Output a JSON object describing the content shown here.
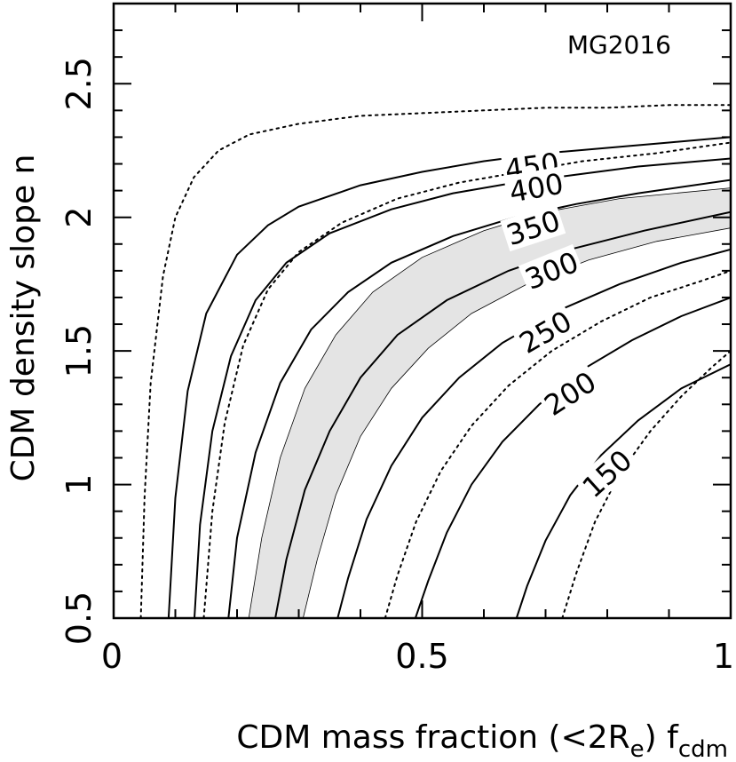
{
  "chart_data": {
    "type": "line",
    "title": "",
    "annotation": "MG2016",
    "xlabel": {
      "text": "CDM mass fraction (<2R",
      "sub_e": "e",
      "close": ")",
      "f": "f",
      "sub_cdm": "cdm"
    },
    "ylabel": "CDM density slope n",
    "xlim": [
      0,
      1
    ],
    "ylim": [
      0.5,
      2.8
    ],
    "x_ticks": [
      0,
      0.5,
      1
    ],
    "x_tick_labels": [
      "0",
      "0.5",
      "1"
    ],
    "y_ticks": [
      0.5,
      1,
      1.5,
      2,
      2.5
    ],
    "y_tick_labels": [
      "0.5",
      "1",
      "1.5",
      "2",
      "2.5"
    ],
    "x_minor_step": 0.1,
    "y_minor_step": 0.1,
    "grid": false,
    "contour_labels": [
      "450",
      "400",
      "350",
      "300",
      "250",
      "200",
      "150"
    ],
    "contour_levels": [
      {
        "level": "450",
        "x": [
          0.089,
          0.1,
          0.12,
          0.15,
          0.2,
          0.25,
          0.3,
          0.4,
          0.5,
          0.6,
          0.7,
          0.8,
          0.9,
          1.0
        ],
        "n": [
          0.5,
          0.95,
          1.35,
          1.64,
          1.86,
          1.97,
          2.04,
          2.12,
          2.17,
          2.21,
          2.24,
          2.26,
          2.28,
          2.3
        ]
      },
      {
        "level": "400",
        "x": [
          0.131,
          0.14,
          0.16,
          0.19,
          0.23,
          0.28,
          0.35,
          0.45,
          0.55,
          0.65,
          0.75,
          0.85,
          1.0
        ],
        "n": [
          0.5,
          0.85,
          1.2,
          1.48,
          1.69,
          1.83,
          1.94,
          2.03,
          2.09,
          2.13,
          2.16,
          2.19,
          2.22
        ]
      },
      {
        "level": "350",
        "x": [
          0.186,
          0.2,
          0.23,
          0.27,
          0.32,
          0.38,
          0.45,
          0.55,
          0.65,
          0.75,
          0.85,
          1.0
        ],
        "n": [
          0.5,
          0.8,
          1.12,
          1.38,
          1.58,
          1.72,
          1.83,
          1.93,
          2.0,
          2.05,
          2.09,
          2.14
        ]
      },
      {
        "level": "300",
        "x": [
          0.262,
          0.28,
          0.31,
          0.35,
          0.4,
          0.46,
          0.54,
          0.64,
          0.74,
          0.86,
          1.0
        ],
        "n": [
          0.5,
          0.72,
          0.98,
          1.2,
          1.4,
          1.56,
          1.69,
          1.8,
          1.88,
          1.95,
          2.02
        ]
      },
      {
        "level": "250",
        "x": [
          0.363,
          0.38,
          0.41,
          0.45,
          0.5,
          0.56,
          0.63,
          0.72,
          0.82,
          0.92,
          1.0
        ],
        "n": [
          0.5,
          0.65,
          0.87,
          1.07,
          1.25,
          1.4,
          1.53,
          1.65,
          1.75,
          1.83,
          1.88
        ]
      },
      {
        "level": "200",
        "x": [
          0.489,
          0.51,
          0.54,
          0.58,
          0.63,
          0.69,
          0.76,
          0.84,
          0.92,
          1.0
        ],
        "n": [
          0.5,
          0.64,
          0.82,
          1.0,
          1.16,
          1.3,
          1.43,
          1.54,
          1.63,
          1.7
        ]
      },
      {
        "level": "150",
        "x": [
          0.653,
          0.67,
          0.7,
          0.74,
          0.79,
          0.85,
          0.92,
          1.0
        ],
        "n": [
          0.5,
          0.62,
          0.79,
          0.96,
          1.11,
          1.24,
          1.36,
          1.45
        ]
      }
    ],
    "dotted_curves": [
      {
        "x": [
          0.044,
          0.05,
          0.06,
          0.08,
          0.1,
          0.13,
          0.17,
          0.22,
          0.3,
          0.4,
          0.5,
          0.6,
          0.7,
          0.8,
          0.9,
          1.0
        ],
        "n": [
          0.5,
          0.95,
          1.38,
          1.78,
          2.0,
          2.15,
          2.25,
          2.31,
          2.35,
          2.38,
          2.39,
          2.4,
          2.41,
          2.41,
          2.42,
          2.42
        ]
      },
      {
        "x": [
          0.146,
          0.16,
          0.18,
          0.21,
          0.25,
          0.3,
          0.37,
          0.46,
          0.56,
          0.66,
          0.76,
          0.88,
          1.0
        ],
        "n": [
          0.5,
          0.9,
          1.23,
          1.52,
          1.73,
          1.87,
          1.98,
          2.07,
          2.13,
          2.17,
          2.21,
          2.24,
          2.28
        ]
      },
      {
        "x": [
          0.44,
          0.46,
          0.49,
          0.53,
          0.58,
          0.64,
          0.71,
          0.79,
          0.87,
          0.95,
          1.0
        ],
        "n": [
          0.5,
          0.66,
          0.86,
          1.05,
          1.22,
          1.37,
          1.5,
          1.61,
          1.7,
          1.76,
          1.8
        ]
      },
      {
        "x": [
          0.727,
          0.75,
          0.78,
          0.82,
          0.87,
          0.92,
          0.97,
          1.0
        ],
        "n": [
          0.5,
          0.67,
          0.86,
          1.04,
          1.2,
          1.33,
          1.44,
          1.5
        ]
      }
    ],
    "shaded_band": {
      "color": "#e4e4e4",
      "lower": {
        "x": [
          0.219,
          0.24,
          0.27,
          0.31,
          0.36,
          0.42,
          0.5,
          0.6,
          0.7,
          0.82,
          1.0
        ],
        "n": [
          0.5,
          0.8,
          1.1,
          1.36,
          1.56,
          1.72,
          1.85,
          1.95,
          2.02,
          2.07,
          2.11
        ]
      },
      "upper": {
        "x": [
          0.307,
          0.33,
          0.36,
          0.4,
          0.45,
          0.51,
          0.58,
          0.67,
          0.77,
          0.88,
          1.0
        ],
        "n": [
          0.5,
          0.72,
          0.96,
          1.18,
          1.36,
          1.51,
          1.64,
          1.75,
          1.84,
          1.91,
          1.96
        ]
      }
    },
    "label_positions": [
      {
        "text": "450",
        "x": 0.678,
        "n": 2.19,
        "angle": -8
      },
      {
        "text": "400",
        "x": 0.685,
        "n": 2.11,
        "angle": -10
      },
      {
        "text": "350",
        "x": 0.68,
        "n": 1.96,
        "angle": -18
      },
      {
        "text": "300",
        "x": 0.71,
        "n": 1.8,
        "angle": -22
      },
      {
        "text": "250",
        "x": 0.7,
        "n": 1.57,
        "angle": -30
      },
      {
        "text": "200",
        "x": 0.74,
        "n": 1.34,
        "angle": -33
      },
      {
        "text": "150",
        "x": 0.8,
        "n": 1.04,
        "angle": -42
      }
    ]
  }
}
